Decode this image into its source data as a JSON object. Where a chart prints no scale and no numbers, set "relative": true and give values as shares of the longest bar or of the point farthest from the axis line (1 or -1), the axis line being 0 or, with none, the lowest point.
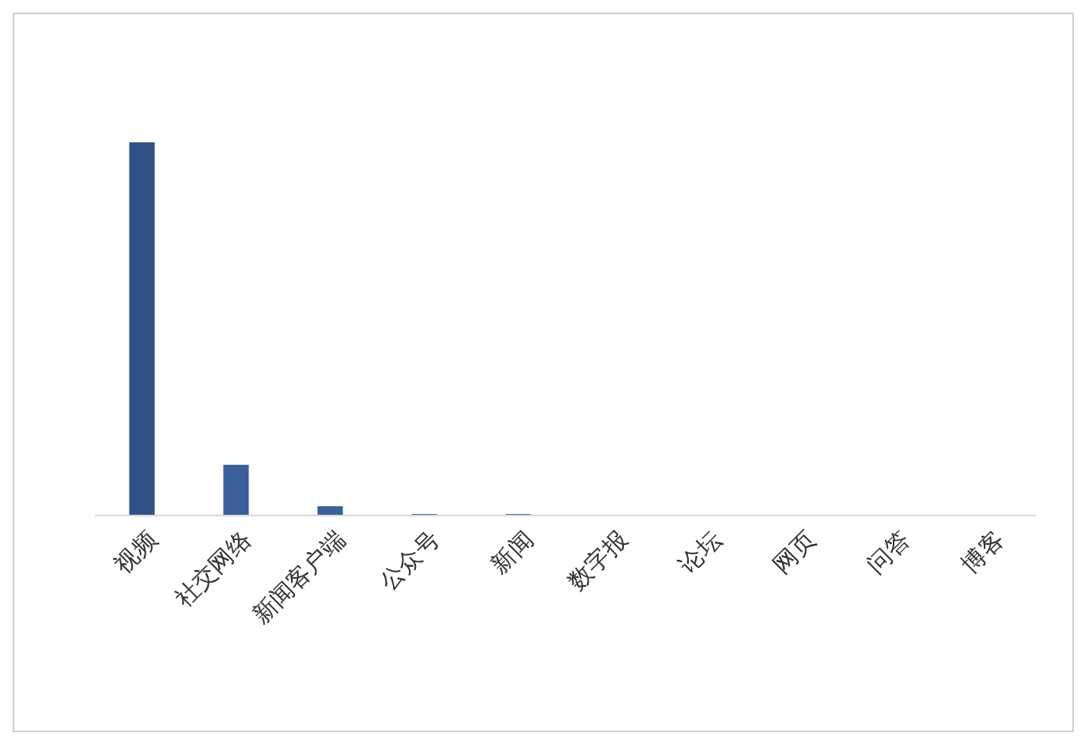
{
  "chart_data": {
    "type": "bar",
    "relative": true,
    "categories": [
      "视频",
      "社交网络",
      "新闻客户端",
      "公众号",
      "新闻",
      "数字报",
      "论坛",
      "网页",
      "问答",
      "博客"
    ],
    "values": [
      1,
      0.136,
      0.025,
      0.004,
      0.004,
      0,
      0,
      0,
      0,
      0
    ],
    "colors": [
      "#2f5185",
      "#3a5f99",
      "#3a5f99",
      "#3a5f99",
      "#3a5f99",
      "#3a5f99",
      "#3a5f99",
      "#3a5f99",
      "#3a5f99",
      "#3a5f99"
    ]
  }
}
